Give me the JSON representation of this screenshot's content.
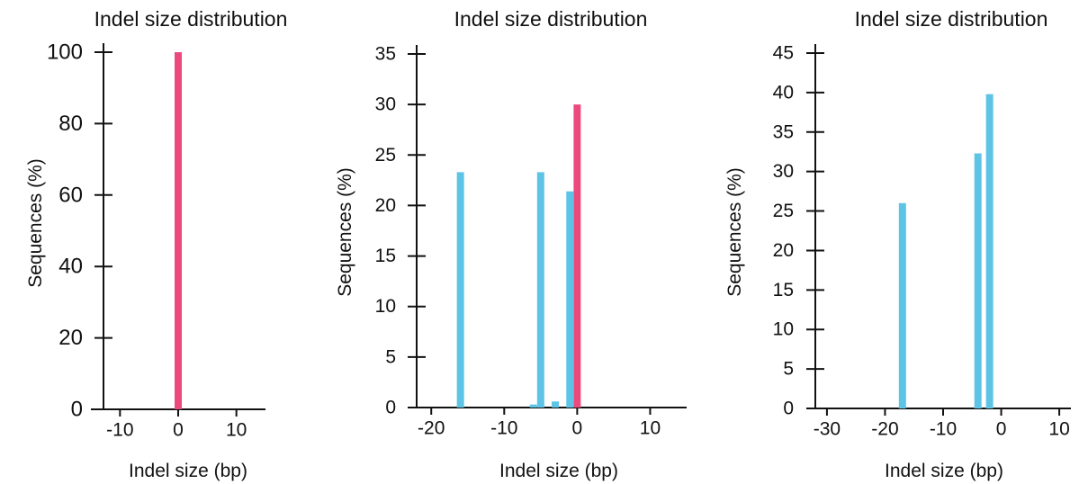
{
  "colors": {
    "wildtype": "#ec4a7e",
    "indel": "#5ec4e6",
    "axis": "#111111"
  },
  "chart_data": [
    {
      "type": "bar",
      "title": "Indel size distribution",
      "xlabel": "Indel size (bp)",
      "ylabel": "Sequences (%)",
      "xlim": [
        -15,
        15
      ],
      "ylim": [
        0,
        100
      ],
      "xticks": [
        -10,
        0,
        10
      ],
      "yticks": [
        0,
        20,
        40,
        60,
        80,
        100
      ],
      "grid": false,
      "bars": [
        {
          "x": 0,
          "y": 100,
          "color": "wildtype"
        }
      ]
    },
    {
      "type": "bar",
      "title": "Indel size distribution",
      "xlabel": "Indel size (bp)",
      "ylabel": "Sequences (%)",
      "xlim": [
        -22,
        15
      ],
      "ylim": [
        0,
        35
      ],
      "xticks": [
        -20,
        -10,
        0,
        10
      ],
      "yticks": [
        0,
        5,
        10,
        15,
        20,
        25,
        30,
        35
      ],
      "grid": false,
      "bars": [
        {
          "x": -16,
          "y": 23.3,
          "color": "indel"
        },
        {
          "x": -6,
          "y": 0.3,
          "color": "indel"
        },
        {
          "x": -5,
          "y": 23.3,
          "color": "indel"
        },
        {
          "x": -3,
          "y": 0.6,
          "color": "indel"
        },
        {
          "x": -1,
          "y": 21.4,
          "color": "indel"
        },
        {
          "x": 0,
          "y": 30,
          "color": "wildtype"
        }
      ]
    },
    {
      "type": "bar",
      "title": "Indel size distribution",
      "xlabel": "Indel size (bp)",
      "ylabel": "Sequences (%)",
      "xlim": [
        -32,
        12
      ],
      "ylim": [
        0,
        45
      ],
      "xticks": [
        -30,
        -20,
        -10,
        0,
        10
      ],
      "yticks": [
        0,
        5,
        10,
        15,
        20,
        25,
        30,
        35,
        40,
        45
      ],
      "grid": false,
      "bars": [
        {
          "x": -17,
          "y": 26,
          "color": "indel"
        },
        {
          "x": -4,
          "y": 32.3,
          "color": "indel"
        },
        {
          "x": -2,
          "y": 39.8,
          "color": "indel"
        }
      ]
    }
  ]
}
